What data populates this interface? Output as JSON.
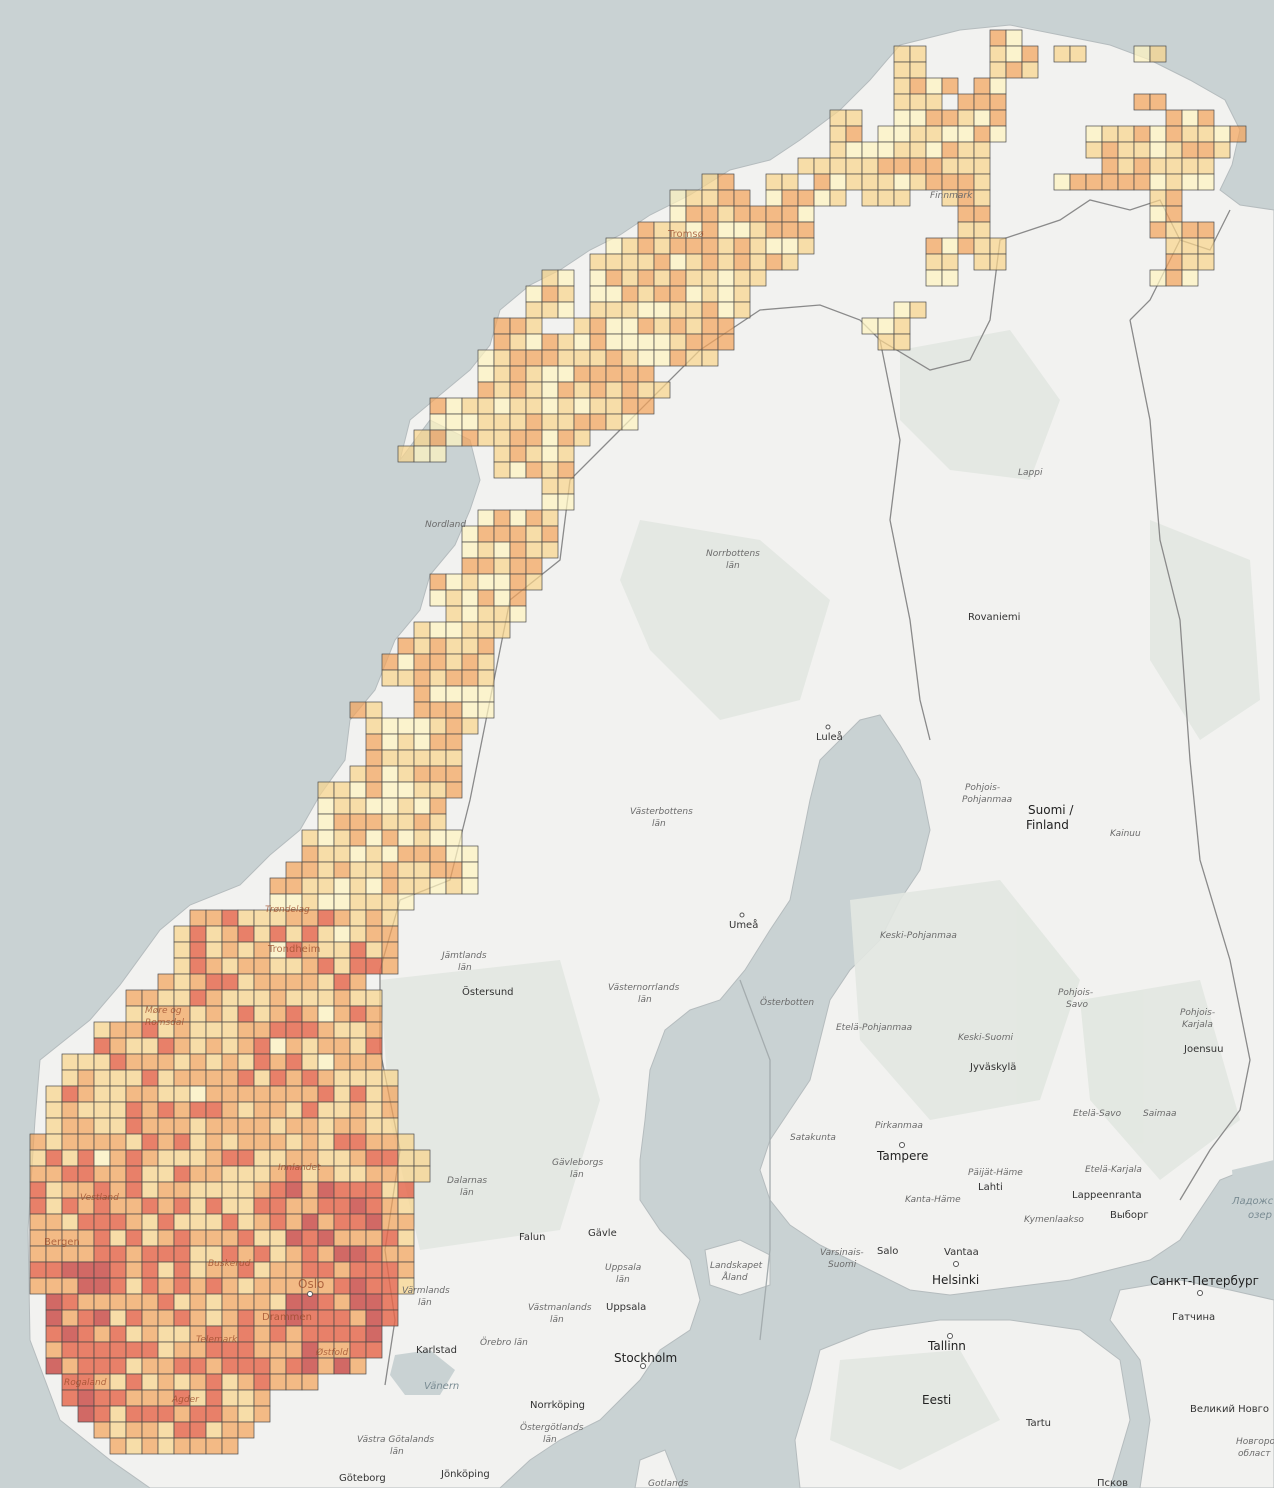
{
  "map": {
    "palette": {
      "water": "#c9d2d3",
      "land": "#f2f2f0",
      "land_shade": "#e8ebe6",
      "forest": "#dfe4dd",
      "border": "#8a8a8a",
      "grid_levels": [
        "#fdf3bf",
        "#f8d48c",
        "#f2a45c",
        "#e5674a",
        "#c94a45"
      ]
    },
    "labels": {
      "tromso": "Tromsø",
      "finnmark": "Finnmark",
      "nordland": "Nordland",
      "lappi": "Lappi",
      "norrbottens": "Norrbottens",
      "norrbottens_lan": "län",
      "rovaniemi": "Rovaniemi",
      "lulea": "Luleå",
      "vasterbottens": "Västerbottens",
      "vasterbottens_lan": "län",
      "pohjois_pohjanmaa_1": "Pohjois-",
      "pohjois_pohjanmaa_2": "Pohjanmaa",
      "suomi": "Suomi /",
      "finland": "Finland",
      "kainuu": "Kainuu",
      "trondelag": "Trøndelag",
      "trondheim": "Trondheim",
      "umea": "Umeå",
      "keski_pohjanmaa": "Keski-Pohjanmaa",
      "jamtlands": "Jämtlands",
      "jamtlands_lan": "län",
      "ostersund": "Östersund",
      "vasternorrlands": "Västernorrlands",
      "vasternorrlands_lan": "län",
      "osterbotten": "Österbotten",
      "pohjois_savo_1": "Pohjois-",
      "pohjois_savo_2": "Savo",
      "more_romsdal_1": "Møre og",
      "more_romsdal_2": "Romsdal",
      "etela_pohjanmaa": "Etelä-Pohjanmaa",
      "keski_suomi": "Keski-Suomi",
      "pohjois_karjala_1": "Pohjois-",
      "pohjois_karjala_2": "Karjala",
      "joensuu": "Joensuu",
      "jyvaskyla": "Jyväskylä",
      "etela_savo": "Etelä-Savo",
      "saimaa": "Saimaa",
      "pirkanmaa": "Pirkanmaa",
      "satakunta": "Satakunta",
      "tampere": "Tampere",
      "paijat_hame": "Päijät-Häme",
      "etela_karjala": "Etelä-Karjala",
      "lahti": "Lahti",
      "kanta_hame": "Kanta-Häme",
      "innlandet": "Innlandet",
      "vestland": "Vestland",
      "gavleborgs": "Gävleborgs",
      "gavleborgs_lan": "län",
      "dalarnas": "Dalarnas",
      "dalarnas_lan": "län",
      "lappeenranta": "Lappeenranta",
      "kymenlaakso": "Kymenlaakso",
      "vyborg": "Выборг",
      "ladoga_1": "Ладожс",
      "ladoga_2": "озер",
      "falun": "Falun",
      "gavle": "Gävle",
      "bergen": "Bergen",
      "buskerud": "Buskerud",
      "uppsala_lan_1": "Uppsala",
      "uppsala_lan_2": "län",
      "landskapet_1": "Landskapet",
      "landskapet_2": "Åland",
      "varsinais_1": "Varsinais-",
      "varsinais_2": "Suomi",
      "salo": "Salo",
      "vantaa": "Vantaa",
      "helsinki": "Helsinki",
      "spb": "Санкт-Петербург",
      "oslo": "Oslo",
      "varmlands": "Värmlands",
      "varmlands_lan": "län",
      "vastmanlands": "Västmanlands",
      "vastmanlands_lan": "län",
      "uppsala": "Uppsala",
      "gatchina": "Гатчина",
      "drammen": "Drammen",
      "telemark": "Telemark",
      "karlstad": "Karlstad",
      "orebro": "Örebro län",
      "stockholm": "Stockholm",
      "tallinn": "Tallinn",
      "ostfold": "Østfold",
      "rogaland": "Rogaland",
      "vanern": "Vänern",
      "eesti": "Eesti",
      "agder": "Agder",
      "norrkoping": "Norrköping",
      "ostergotlands": "Östergötlands",
      "ostergotlands_lan": "län",
      "tartu": "Tartu",
      "veliky_novgorod": "Великий Новго",
      "novgorod_obl_1": "Новгород",
      "novgorod_obl_2": "област",
      "vastra_1": "Västra Götalands",
      "vastra_2": "län",
      "goteborg": "Göteborg",
      "jonkoping": "Jönköping",
      "gotlands": "Gotlands",
      "pskov": "Псков"
    }
  }
}
